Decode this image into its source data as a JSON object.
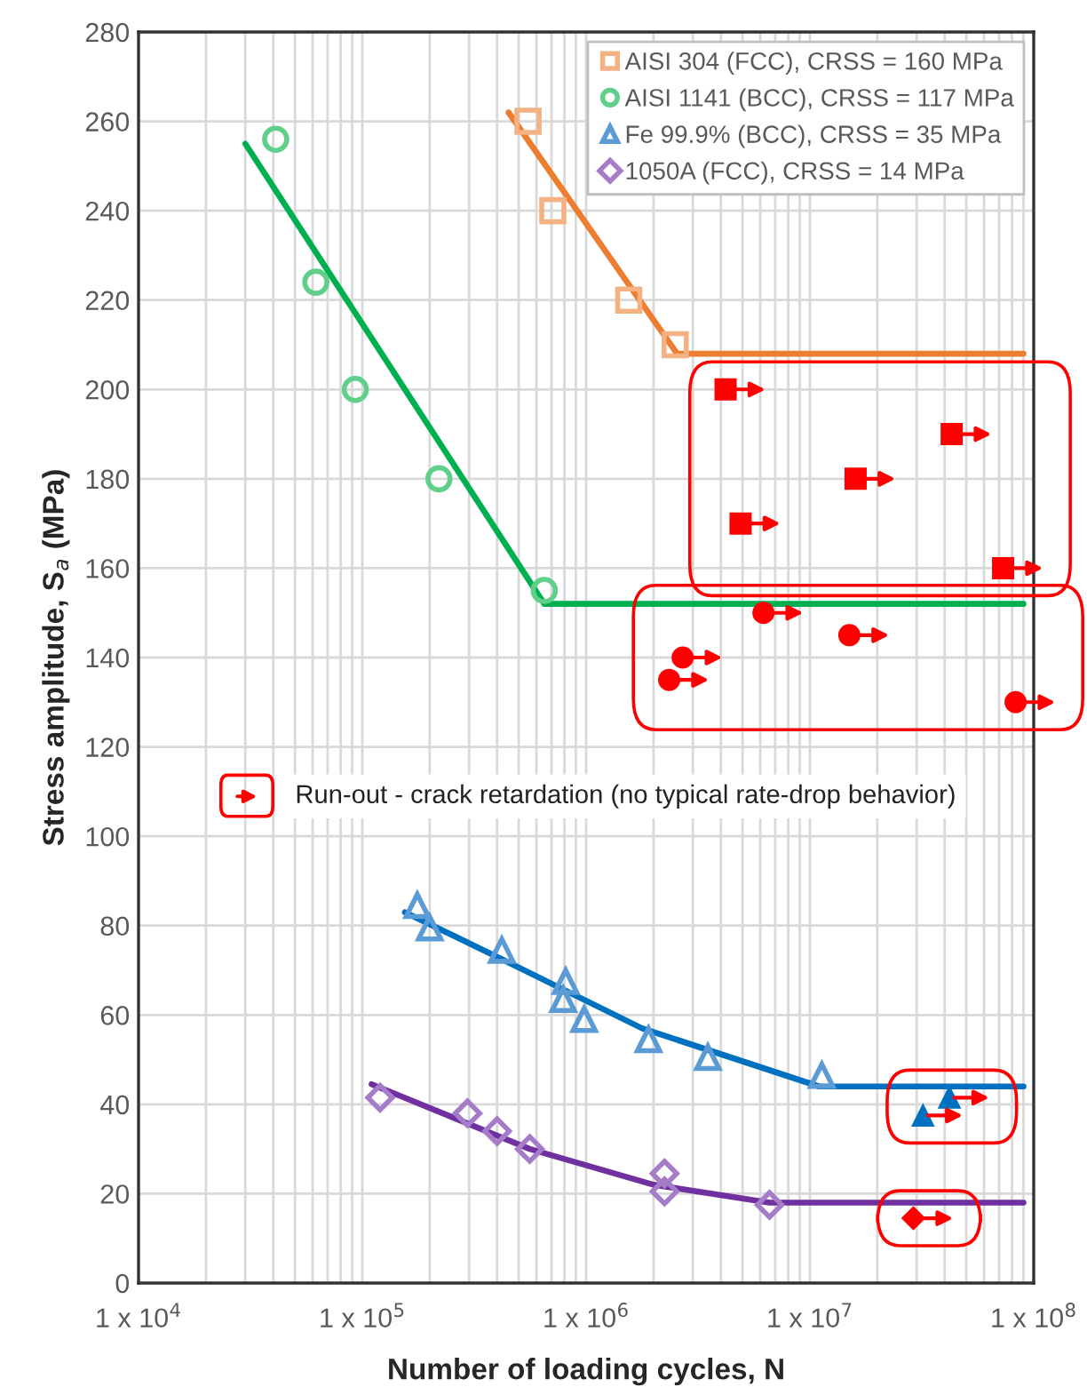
{
  "chart_data": {
    "type": "scatter",
    "xlabel": "Number of loading cycles, N",
    "ylabel": "Stress amplitude, S$_{a}$ (MPa)",
    "log": "x",
    "xlim": [
      10000,
      100000000
    ],
    "ylim": [
      0,
      280
    ],
    "xticks": [
      {
        "value": 10000,
        "label": "1 x 10$^{4}$"
      },
      {
        "value": 100000,
        "label": "1 x 10$^{5}$"
      },
      {
        "value": 1000000,
        "label": "1 x 10$^{6}$"
      },
      {
        "value": 10000000,
        "label": "1 x 10$^{7}$"
      },
      {
        "value": 100000000,
        "label": "1 x 10$^{8}$"
      }
    ],
    "yticks": [
      0,
      20,
      40,
      60,
      80,
      100,
      120,
      140,
      160,
      180,
      200,
      220,
      240,
      260,
      280
    ],
    "grid": true,
    "legend": "top right",
    "annotations": [
      "Run-out - crack retardation (no typical rate-drop behavior)"
    ],
    "series": [
      {
        "name": "AISI 304 (FCC), CRSS = 160 MPa",
        "marker": "square",
        "color": "#f4b183",
        "x": [
          550000,
          710000,
          1550000,
          2500000
        ],
        "values": [
          260,
          240,
          220,
          210
        ]
      },
      {
        "name": "AISI 1141 (BCC), CRSS = 117 MPa",
        "marker": "circle",
        "color": "#5fcf8a",
        "x": [
          41000,
          62000,
          93000,
          220000,
          650000
        ],
        "values": [
          256,
          224,
          200,
          180,
          155
        ]
      },
      {
        "name": "Fe 99.9% (BCC), CRSS = 35 MPa",
        "marker": "triangle",
        "color": "#5b9bd5",
        "x": [
          176000,
          200000,
          420000,
          810000,
          790000,
          980000,
          1900000,
          3500000,
          11300000
        ],
        "values": [
          84.5,
          79.5,
          74.5,
          67.5,
          63.5,
          59,
          54.5,
          50.5,
          46.5
        ]
      },
      {
        "name": "1050A (FCC), CRSS = 14 MPa",
        "marker": "diamond",
        "color": "#a57cc8",
        "x": [
          120000,
          295000,
          400000,
          560000,
          2240000,
          2240000,
          6600000
        ],
        "values": [
          41.5,
          38,
          34,
          30,
          24.5,
          20.5,
          17.5
        ]
      },
      {
        "marker": "square",
        "color": "#ff0000",
        "x": [
          4200000,
          4900000,
          16000000,
          43000000,
          73000000
        ],
        "values": [
          200,
          170,
          180,
          190,
          160
        ]
      },
      {
        "marker": "circle",
        "color": "#ff0000",
        "x": [
          2350000,
          2700000,
          6200000,
          15000000,
          83000000
        ],
        "values": [
          135,
          140,
          150,
          145,
          130
        ]
      },
      {
        "marker": "triangle",
        "color": "#0070c0",
        "x": [
          32000000,
          42000000
        ],
        "values": [
          37.5,
          41.5
        ]
      },
      {
        "marker": "diamond",
        "color": "#ff0000",
        "x": [
          29000000
        ],
        "values": [
          14.5
        ]
      },
      {
        "type": "line",
        "color": "#ed7d31",
        "x": [
          450000,
          2550000,
          90000000
        ],
        "values": [
          262,
          208,
          208
        ]
      },
      {
        "type": "line",
        "color": "#00b050",
        "x": [
          30000,
          650000,
          90000000
        ],
        "values": [
          255,
          152,
          152
        ]
      },
      {
        "type": "line",
        "color": "#0070c0",
        "x": [
          155000,
          420000,
          1780000,
          11000000,
          90000000
        ],
        "values": [
          83,
          72.5,
          57,
          44,
          44
        ]
      },
      {
        "type": "line",
        "color": "#7030a0",
        "x": [
          110000,
          560000,
          2000000,
          6600000,
          90000000
        ],
        "values": [
          44.5,
          30,
          22,
          18,
          18
        ]
      }
    ]
  }
}
